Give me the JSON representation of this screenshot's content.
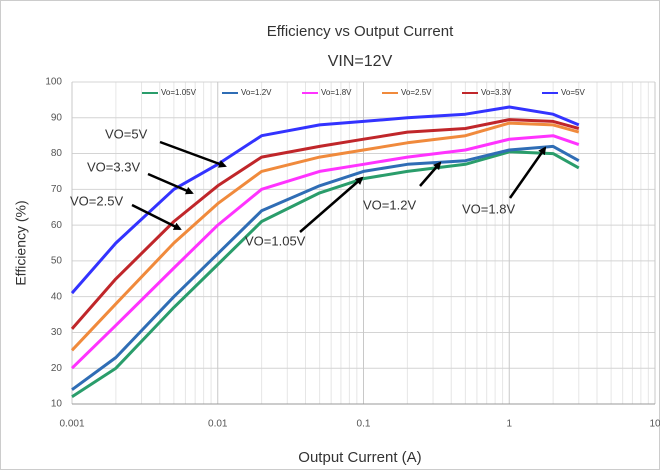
{
  "chart_data": {
    "type": "line",
    "title": "Efficiency vs Output Current",
    "subtitle": "VIN=12V",
    "x_label": "Output Current (A)",
    "y_label": "Efficiency (%)",
    "x": [
      0.001,
      0.002,
      0.005,
      0.01,
      0.02,
      0.05,
      0.1,
      0.2,
      0.5,
      1,
      2,
      3
    ],
    "series": [
      {
        "name": "Vo=1.05V",
        "color": "#2a9d6b",
        "values": [
          12,
          20,
          37,
          49,
          61,
          69,
          73,
          75,
          77,
          80.5,
          80,
          76
        ]
      },
      {
        "name": "Vo=1.2V",
        "color": "#2f6db5",
        "values": [
          14,
          23,
          40,
          52,
          64,
          71,
          75,
          77,
          78,
          81,
          82,
          78
        ]
      },
      {
        "name": "Vo=1.8V",
        "color": "#ff33ff",
        "values": [
          20,
          32,
          48,
          60,
          70,
          75,
          77,
          79,
          81,
          84,
          85,
          82.5
        ]
      },
      {
        "name": "Vo=2.5V",
        "color": "#f08a3c",
        "values": [
          25,
          38,
          55,
          66,
          75,
          79,
          81,
          83,
          85,
          88.5,
          88,
          86
        ]
      },
      {
        "name": "Vo=3.3V",
        "color": "#c0262a",
        "values": [
          31,
          45,
          61,
          71,
          79,
          82,
          84,
          86,
          87,
          89.5,
          89,
          87
        ]
      },
      {
        "name": "Vo=5V",
        "color": "#3333ff",
        "values": [
          41,
          55,
          70,
          77,
          85,
          88,
          89,
          90,
          91,
          93,
          91,
          88
        ]
      }
    ],
    "annotations": [
      "VO=5V",
      "VO=3.3V",
      "VO=2.5V",
      "VO=1.05V",
      "VO=1.2V",
      "VO=1.8V"
    ],
    "xlim": [
      0.001,
      10
    ],
    "xticks": [
      0.001,
      0.01,
      0.1,
      1,
      10
    ],
    "x_log": true,
    "ylim": [
      10,
      100
    ],
    "yticks": [
      10,
      20,
      30,
      40,
      50,
      60,
      70,
      80,
      90,
      100
    ],
    "grid": true,
    "minor_grid": true,
    "legend": "top"
  }
}
